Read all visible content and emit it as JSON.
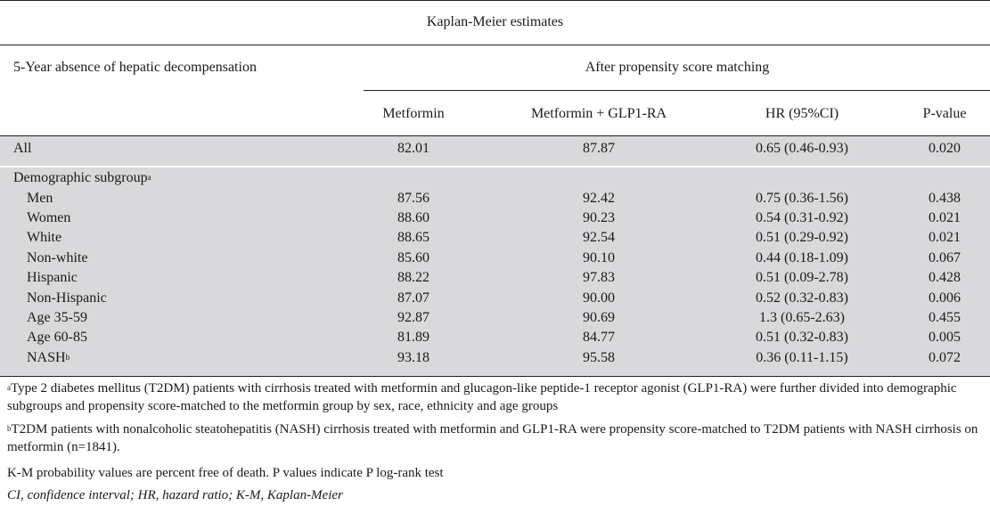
{
  "header": {
    "group_title": "Kaplan-Meier estimates",
    "row_title": "5-Year absence of hepatic decompensation",
    "subgroup_title": "After propensity score matching",
    "columns": [
      "Metformin",
      "Metformin + GLP1-RA",
      "HR (95%CI)",
      "P-value"
    ]
  },
  "all_row": {
    "label": "All",
    "metformin": "82.01",
    "combo": "87.87",
    "hr": "0.65 (0.46-0.93)",
    "p": "0.020"
  },
  "demographic": {
    "label": "Demographic subgroup",
    "label_sup": "a",
    "rows": [
      {
        "label": "Men",
        "sup": "",
        "metformin": "87.56",
        "combo": "92.42",
        "hr": "0.75 (0.36-1.56)",
        "p": "0.438"
      },
      {
        "label": "Women",
        "sup": "",
        "metformin": "88.60",
        "combo": "90.23",
        "hr": "0.54 (0.31-0.92)",
        "p": "0.021"
      },
      {
        "label": "White",
        "sup": "",
        "metformin": "88.65",
        "combo": "92.54",
        "hr": "0.51 (0.29-0.92)",
        "p": "0.021"
      },
      {
        "label": "Non-white",
        "sup": "",
        "metformin": "85.60",
        "combo": "90.10",
        "hr": "0.44 (0.18-1.09)",
        "p": "0.067"
      },
      {
        "label": "Hispanic",
        "sup": "",
        "metformin": "88.22",
        "combo": "97.83",
        "hr": "0.51 (0.09-2.78)",
        "p": "0.428"
      },
      {
        "label": "Non-Hispanic",
        "sup": "",
        "metformin": "87.07",
        "combo": "90.00",
        "hr": "0.52 (0.32-0.83)",
        "p": "0.006"
      },
      {
        "label": "Age 35-59",
        "sup": "",
        "metformin": "92.87",
        "combo": "90.69",
        "hr": "1.3 (0.65-2.63)",
        "p": "0.455"
      },
      {
        "label": "Age 60-85",
        "sup": "",
        "metformin": "81.89",
        "combo": "84.77",
        "hr": "0.51 (0.32-0.83)",
        "p": "0.005"
      },
      {
        "label": "NASH",
        "sup": "b",
        "metformin": "93.18",
        "combo": "95.58",
        "hr": "0.36 (0.11-1.15)",
        "p": "0.072"
      }
    ]
  },
  "footnotes": {
    "a_mark": "a",
    "a_text": "Type 2 diabetes mellitus (T2DM) patients with cirrhosis treated with metformin and glucagon-like peptide-1 receptor agonist (GLP1-RA) were further divided into demographic subgroups and propensity score-matched to the metformin group by sex, race, ethnicity and age groups",
    "b_mark": "b",
    "b_text": "T2DM patients with nonalcoholic steatohepatitis (NASH) cirrhosis treated with metformin and GLP1-RA were propensity score-matched to T2DM patients with NASH cirrhosis on metformin (n=1841).",
    "km": "K-M probability values are percent free of death. P values indicate P log-rank test",
    "abbrev": "CI, confidence interval; HR, hazard ratio; K-M, Kaplan-Meier"
  }
}
